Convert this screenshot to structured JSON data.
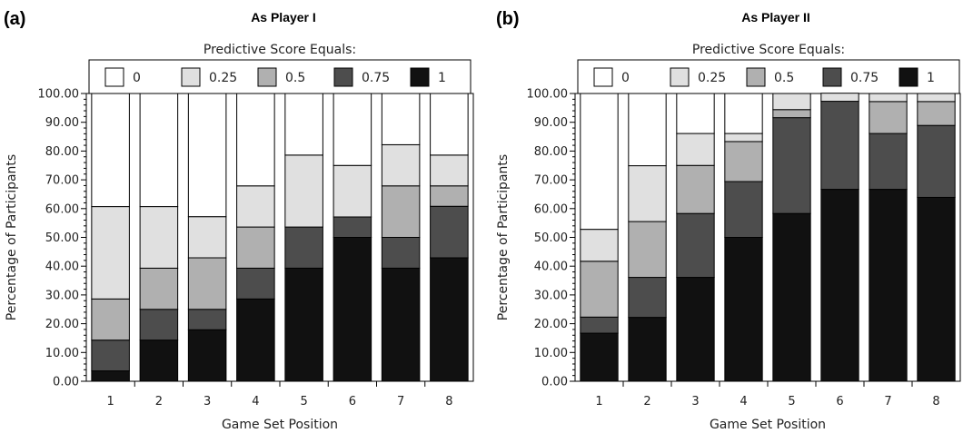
{
  "legend_title": "Predictive Score Equals:",
  "chart_data": [
    {
      "type": "bar",
      "stacked": true,
      "panel_label": "(a)",
      "title": "As Player I",
      "xlabel": "Game Set Position",
      "ylabel": "Percentage of Participants",
      "ylim": [
        0,
        100
      ],
      "yticks": [
        "0.00",
        "10.00",
        "20.00",
        "30.00",
        "40.00",
        "50.00",
        "60.00",
        "70.00",
        "80.00",
        "90.00",
        "100.00"
      ],
      "categories": [
        "1",
        "2",
        "3",
        "4",
        "5",
        "6",
        "7",
        "8"
      ],
      "legend_position": "top",
      "series": [
        {
          "name": "1",
          "color": "#111111",
          "values": [
            3.6,
            14.3,
            17.9,
            28.6,
            39.3,
            50.0,
            39.3,
            42.9
          ]
        },
        {
          "name": "0.75",
          "color": "#4d4d4d",
          "values": [
            10.7,
            10.7,
            7.1,
            10.7,
            14.3,
            7.1,
            10.7,
            17.9
          ]
        },
        {
          "name": "0.5",
          "color": "#b0b0b0",
          "values": [
            14.3,
            14.3,
            17.9,
            14.3,
            0,
            0,
            17.9,
            7.1
          ]
        },
        {
          "name": "0.25",
          "color": "#e0e0e0",
          "values": [
            32.1,
            21.4,
            14.3,
            14.3,
            25.0,
            17.9,
            14.3,
            10.7
          ]
        },
        {
          "name": "0",
          "color": "#ffffff",
          "values": [
            39.3,
            39.3,
            42.8,
            32.1,
            21.4,
            25.0,
            17.8,
            21.4
          ]
        }
      ]
    },
    {
      "type": "bar",
      "stacked": true,
      "panel_label": "(b)",
      "title": "As Player II",
      "xlabel": "Game Set Position",
      "ylabel": "Percentage of Participants",
      "ylim": [
        0,
        100
      ],
      "yticks": [
        "0.00",
        "10.00",
        "20.00",
        "30.00",
        "40.00",
        "50.00",
        "60.00",
        "70.00",
        "80.00",
        "90.00",
        "100.00"
      ],
      "categories": [
        "1",
        "2",
        "3",
        "4",
        "5",
        "6",
        "7",
        "8"
      ],
      "legend_position": "top",
      "series": [
        {
          "name": "1",
          "color": "#111111",
          "values": [
            16.7,
            22.2,
            36.1,
            50.0,
            58.3,
            66.7,
            66.7,
            63.9
          ]
        },
        {
          "name": "0.75",
          "color": "#4d4d4d",
          "values": [
            5.6,
            13.9,
            22.2,
            19.4,
            33.3,
            30.6,
            19.4,
            25.0
          ]
        },
        {
          "name": "0.5",
          "color": "#b0b0b0",
          "values": [
            19.4,
            19.4,
            16.7,
            13.9,
            2.8,
            0,
            11.1,
            8.3
          ]
        },
        {
          "name": "0.25",
          "color": "#e0e0e0",
          "values": [
            11.1,
            19.4,
            11.1,
            2.8,
            5.6,
            2.8,
            2.8,
            2.8
          ]
        },
        {
          "name": "0",
          "color": "#ffffff",
          "values": [
            47.2,
            25.1,
            13.9,
            13.9,
            0,
            0,
            0,
            0
          ]
        }
      ]
    }
  ]
}
